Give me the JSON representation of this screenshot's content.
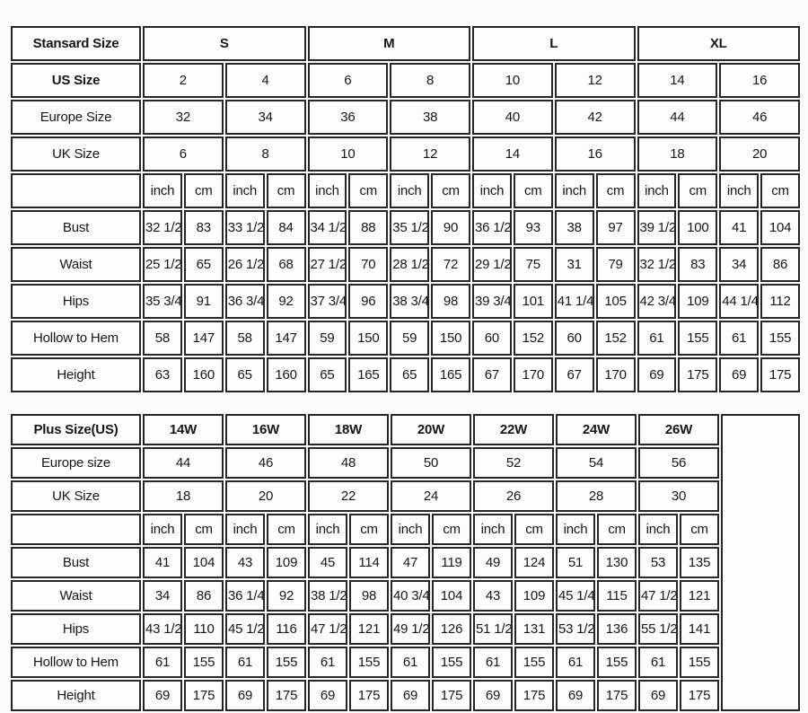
{
  "page": {
    "background": "#fbfbfb",
    "border_color": "#272727"
  },
  "tables": [
    {
      "name": "standard-size-table",
      "title": "Stansard Size",
      "size_groups": [
        "S",
        "M",
        "L",
        "XL"
      ],
      "group_span": 4,
      "size_rows": [
        {
          "label": "US Size",
          "bold": true,
          "values": [
            "2",
            "4",
            "6",
            "8",
            "10",
            "12",
            "14",
            "16"
          ]
        },
        {
          "label": "Europe Size",
          "bold": false,
          "values": [
            "32",
            "34",
            "36",
            "38",
            "40",
            "42",
            "44",
            "46"
          ]
        },
        {
          "label": "UK Size",
          "bold": false,
          "values": [
            "6",
            "8",
            "10",
            "12",
            "14",
            "16",
            "18",
            "20"
          ]
        }
      ],
      "units": [
        "inch",
        "cm"
      ],
      "unit_repeat": 8,
      "measure_rows": [
        {
          "label": "Bust",
          "values": [
            "32 1/2",
            "83",
            "33 1/2",
            "84",
            "34 1/2",
            "88",
            "35 1/2",
            "90",
            "36 1/2",
            "93",
            "38",
            "97",
            "39 1/2",
            "100",
            "41",
            "104"
          ]
        },
        {
          "label": "Waist",
          "values": [
            "25 1/2",
            "65",
            "26 1/2",
            "68",
            "27 1/2",
            "70",
            "28 1/2",
            "72",
            "29 1/2",
            "75",
            "31",
            "79",
            "32 1/2",
            "83",
            "34",
            "86"
          ]
        },
        {
          "label": "Hips",
          "values": [
            "35 3/4",
            "91",
            "36 3/4",
            "92",
            "37 3/4",
            "96",
            "38 3/4",
            "98",
            "39 3/4",
            "101",
            "41 1/4",
            "105",
            "42 3/4",
            "109",
            "44 1/4",
            "112"
          ]
        },
        {
          "label": "Hollow to Hem",
          "values": [
            "58",
            "147",
            "58",
            "147",
            "59",
            "150",
            "59",
            "150",
            "60",
            "152",
            "60",
            "152",
            "61",
            "155",
            "61",
            "155"
          ]
        },
        {
          "label": "Height",
          "values": [
            "63",
            "160",
            "65",
            "160",
            "65",
            "165",
            "65",
            "165",
            "67",
            "170",
            "67",
            "170",
            "69",
            "175",
            "69",
            "175"
          ]
        }
      ],
      "trailing_empty_column": false
    },
    {
      "name": "plus-size-table",
      "title": "Plus Size(US)",
      "size_groups": [
        "14W",
        "16W",
        "18W",
        "20W",
        "22W",
        "24W",
        "26W"
      ],
      "group_span": 2,
      "size_rows": [
        {
          "label": "Europe size",
          "bold": false,
          "values": [
            "44",
            "46",
            "48",
            "50",
            "52",
            "54",
            "56"
          ]
        },
        {
          "label": "UK Size",
          "bold": false,
          "values": [
            "18",
            "20",
            "22",
            "24",
            "26",
            "28",
            "30"
          ]
        }
      ],
      "units": [
        "inch",
        "cm"
      ],
      "unit_repeat": 7,
      "measure_rows": [
        {
          "label": "Bust",
          "values": [
            "41",
            "104",
            "43",
            "109",
            "45",
            "114",
            "47",
            "119",
            "49",
            "124",
            "51",
            "130",
            "53",
            "135"
          ]
        },
        {
          "label": "Waist",
          "values": [
            "34",
            "86",
            "36 1/4",
            "92",
            "38 1/2",
            "98",
            "40 3/4",
            "104",
            "43",
            "109",
            "45 1/4",
            "115",
            "47 1/2",
            "121"
          ]
        },
        {
          "label": "Hips",
          "values": [
            "43 1/2",
            "110",
            "45 1/2",
            "116",
            "47 1/2",
            "121",
            "49 1/2",
            "126",
            "51 1/2",
            "131",
            "53 1/2",
            "136",
            "55 1/2",
            "141"
          ]
        },
        {
          "label": "Hollow to Hem",
          "values": [
            "61",
            "155",
            "61",
            "155",
            "61",
            "155",
            "61",
            "155",
            "61",
            "155",
            "61",
            "155",
            "61",
            "155"
          ]
        },
        {
          "label": "Height",
          "values": [
            "69",
            "175",
            "69",
            "175",
            "69",
            "175",
            "69",
            "175",
            "69",
            "175",
            "69",
            "175",
            "69",
            "175"
          ]
        }
      ],
      "trailing_empty_column": true
    }
  ]
}
